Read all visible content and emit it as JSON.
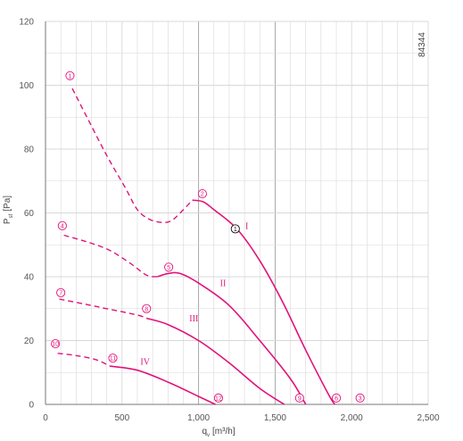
{
  "code": "84344",
  "colors": {
    "curve": "#e2127a",
    "grid": "#d8d8d8",
    "grid_major": "#a0a0a0",
    "text": "#555555"
  },
  "chart_data": {
    "type": "line",
    "xlabel": "q",
    "xlabel_sub": "v",
    "xlabel_unit": "[m³/h]",
    "ylabel": "P",
    "ylabel_sub": "sf",
    "ylabel_unit": "[Pa]",
    "xlim": [
      0,
      2500
    ],
    "ylim": [
      0,
      120
    ],
    "x_ticks": [
      0,
      500,
      1000,
      1500,
      2000,
      2500
    ],
    "x_tick_labels": [
      "0",
      "500",
      "1,000",
      "1,500",
      "2,000",
      "2,500"
    ],
    "y_ticks": [
      0,
      20,
      40,
      60,
      80,
      100,
      120
    ],
    "y_tick_labels": [
      "0",
      "20",
      "40",
      "60",
      "80",
      "100",
      "120"
    ],
    "grid": true,
    "series": [
      {
        "name": "I",
        "label_at": [
          1305,
          55
        ],
        "dashed": [
          [
            175,
            99
          ],
          [
            260,
            91
          ],
          [
            400,
            78
          ],
          [
            520,
            68
          ],
          [
            600,
            61
          ],
          [
            680,
            58
          ],
          [
            760,
            57
          ],
          [
            820,
            57.5
          ],
          [
            880,
            60
          ],
          [
            960,
            64
          ]
        ],
        "solid": [
          [
            960,
            64
          ],
          [
            1030,
            63.5
          ],
          [
            1100,
            61
          ],
          [
            1250,
            55
          ],
          [
            1400,
            45
          ],
          [
            1550,
            32
          ],
          [
            1700,
            17
          ],
          [
            1850,
            3
          ],
          [
            1890,
            0
          ]
        ]
      },
      {
        "name": "II",
        "label_at": [
          1140,
          37
        ],
        "dashed": [
          [
            120,
            53
          ],
          [
            300,
            50.5
          ],
          [
            430,
            48
          ],
          [
            560,
            44
          ],
          [
            660,
            40.5
          ],
          [
            730,
            40
          ]
        ],
        "solid": [
          [
            730,
            40
          ],
          [
            800,
            41
          ],
          [
            880,
            41
          ],
          [
            1000,
            38
          ],
          [
            1200,
            31
          ],
          [
            1400,
            20
          ],
          [
            1600,
            8
          ],
          [
            1700,
            0
          ]
        ]
      },
      {
        "name": "III",
        "label_at": [
          940,
          26
        ],
        "dashed": [
          [
            90,
            33
          ],
          [
            250,
            31.5
          ],
          [
            400,
            30
          ],
          [
            600,
            28
          ],
          [
            660,
            27
          ]
        ],
        "solid": [
          [
            660,
            27
          ],
          [
            800,
            25
          ],
          [
            1000,
            20
          ],
          [
            1200,
            13
          ],
          [
            1400,
            5
          ],
          [
            1560,
            0
          ]
        ]
      },
      {
        "name": "IV",
        "label_at": [
          620,
          12.5
        ],
        "dashed": [
          [
            80,
            16
          ],
          [
            200,
            15.3
          ],
          [
            330,
            14
          ],
          [
            420,
            12
          ]
        ],
        "solid": [
          [
            420,
            12
          ],
          [
            600,
            10.7
          ],
          [
            800,
            7
          ],
          [
            1000,
            2.5
          ],
          [
            1110,
            0
          ]
        ]
      }
    ],
    "markers": [
      {
        "label": "1",
        "x": 160,
        "y": 103
      },
      {
        "label": "2",
        "x": 1025,
        "y": 66
      },
      {
        "label": "3",
        "x": 2055,
        "y": 2
      },
      {
        "label": "4",
        "x": 110,
        "y": 56
      },
      {
        "label": "5",
        "x": 805,
        "y": 43
      },
      {
        "label": "6",
        "x": 1900,
        "y": 2
      },
      {
        "label": "7",
        "x": 100,
        "y": 35
      },
      {
        "label": "8",
        "x": 660,
        "y": 30
      },
      {
        "label": "9",
        "x": 1660,
        "y": 2
      },
      {
        "label": "10",
        "x": 65,
        "y": 19
      },
      {
        "label": "11",
        "x": 440,
        "y": 14.5
      },
      {
        "label": "12",
        "x": 1130,
        "y": 2
      },
      {
        "label": "1",
        "x": 1240,
        "y": 55,
        "black": true
      }
    ]
  }
}
